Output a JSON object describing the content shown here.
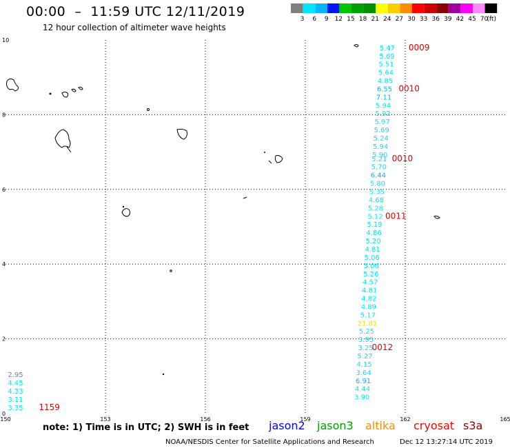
{
  "header": {
    "title": "00:00  –  11:59 UTC 12/11/2019",
    "subtitle": "12 hour collection of altimeter wave heights"
  },
  "legend": {
    "unit": "(ft)",
    "bins": [
      {
        "label": "3",
        "color": "#808080"
      },
      {
        "label": "6",
        "color": "#00e5ff"
      },
      {
        "label": "9",
        "color": "#00b4ff"
      },
      {
        "label": "12",
        "color": "#0014ff"
      },
      {
        "label": "15",
        "color": "#00c800"
      },
      {
        "label": "18",
        "color": "#00a000"
      },
      {
        "label": "21",
        "color": "#009000"
      },
      {
        "label": "24",
        "color": "#ffff00"
      },
      {
        "label": "27",
        "color": "#ffcc00"
      },
      {
        "label": "30",
        "color": "#ff8c00"
      },
      {
        "label": "33",
        "color": "#ff0000"
      },
      {
        "label": "36",
        "color": "#c80000"
      },
      {
        "label": "39",
        "color": "#8b0000"
      },
      {
        "label": "42",
        "color": "#a000a0"
      },
      {
        "label": "45",
        "color": "#ff00ff"
      },
      {
        "label": "70",
        "color": "#ff88ff"
      },
      {
        "label": "",
        "color": "#000000"
      }
    ]
  },
  "chart_data": {
    "type": "scatter",
    "xlim": [
      150,
      165
    ],
    "ylim": [
      0,
      10
    ],
    "xticks": [
      "150",
      "153",
      "156",
      "159",
      "162",
      "165"
    ],
    "yticks": [
      "0",
      "2",
      "4",
      "6",
      "8",
      "10"
    ],
    "grid": true,
    "points": [
      {
        "lon": 161.46,
        "lat": 9.8,
        "v": "5.47",
        "c": "#00e5ff"
      },
      {
        "lon": 161.45,
        "lat": 9.58,
        "v": "5.69",
        "c": "#00e5ff"
      },
      {
        "lon": 161.43,
        "lat": 9.36,
        "v": "5.51",
        "c": "#00e5ff"
      },
      {
        "lon": 161.42,
        "lat": 9.14,
        "v": "5.64",
        "c": "#00e5ff"
      },
      {
        "lon": 161.4,
        "lat": 8.92,
        "v": "4.85",
        "c": "#00e5ff"
      },
      {
        "lon": 161.38,
        "lat": 8.7,
        "v": "6.55",
        "c": "#00b4ff"
      },
      {
        "lon": 161.36,
        "lat": 8.48,
        "v": "7.11",
        "c": "#00b4ff"
      },
      {
        "lon": 161.34,
        "lat": 8.26,
        "v": "5.94",
        "c": "#00e5ff"
      },
      {
        "lon": 161.33,
        "lat": 8.04,
        "v": "5.92",
        "c": "#00e5ff"
      },
      {
        "lon": 161.31,
        "lat": 7.82,
        "v": "5.97",
        "c": "#00e5ff"
      },
      {
        "lon": 161.29,
        "lat": 7.6,
        "v": "5.69",
        "c": "#00e5ff"
      },
      {
        "lon": 161.27,
        "lat": 7.38,
        "v": "5.24",
        "c": "#00e5ff"
      },
      {
        "lon": 161.26,
        "lat": 7.16,
        "v": "5.94",
        "c": "#00e5ff"
      },
      {
        "lon": 161.24,
        "lat": 6.94,
        "v": "5.90",
        "c": "#00e5ff"
      },
      {
        "lon": 161.22,
        "lat": 6.83,
        "v": "5.21",
        "c": "#00e5ff"
      },
      {
        "lon": 161.21,
        "lat": 6.61,
        "v": "5.70",
        "c": "#00e5ff"
      },
      {
        "lon": 161.19,
        "lat": 6.39,
        "v": "6.44",
        "c": "#00b4ff"
      },
      {
        "lon": 161.17,
        "lat": 6.17,
        "v": "5.80",
        "c": "#00e5ff"
      },
      {
        "lon": 161.15,
        "lat": 5.95,
        "v": "5.35",
        "c": "#00e5ff"
      },
      {
        "lon": 161.13,
        "lat": 5.73,
        "v": "4.68",
        "c": "#00e5ff"
      },
      {
        "lon": 161.11,
        "lat": 5.51,
        "v": "5.28",
        "c": "#00e5ff"
      },
      {
        "lon": 161.1,
        "lat": 5.29,
        "v": "5.12",
        "c": "#00e5ff"
      },
      {
        "lon": 161.08,
        "lat": 5.07,
        "v": "5.19",
        "c": "#00e5ff"
      },
      {
        "lon": 161.06,
        "lat": 4.85,
        "v": "4.86",
        "c": "#00e5ff"
      },
      {
        "lon": 161.04,
        "lat": 4.63,
        "v": "5.20",
        "c": "#00e5ff"
      },
      {
        "lon": 161.02,
        "lat": 4.41,
        "v": "4.81",
        "c": "#00e5ff"
      },
      {
        "lon": 161.0,
        "lat": 4.19,
        "v": "5.06",
        "c": "#00e5ff"
      },
      {
        "lon": 160.98,
        "lat": 3.97,
        "v": "5.06",
        "c": "#00e5ff"
      },
      {
        "lon": 160.97,
        "lat": 3.75,
        "v": "5.26",
        "c": "#00e5ff"
      },
      {
        "lon": 160.95,
        "lat": 3.53,
        "v": "4.57",
        "c": "#00e5ff"
      },
      {
        "lon": 160.93,
        "lat": 3.31,
        "v": "4.81",
        "c": "#00e5ff"
      },
      {
        "lon": 160.91,
        "lat": 3.09,
        "v": "4.82",
        "c": "#00e5ff"
      },
      {
        "lon": 160.9,
        "lat": 2.87,
        "v": "4.89",
        "c": "#00e5ff"
      },
      {
        "lon": 160.88,
        "lat": 2.65,
        "v": "5.17",
        "c": "#00e5ff"
      },
      {
        "lon": 160.86,
        "lat": 2.43,
        "v": "21.81",
        "c": "#e6e600"
      },
      {
        "lon": 160.84,
        "lat": 2.21,
        "v": "5.25",
        "c": "#00e5ff"
      },
      {
        "lon": 160.82,
        "lat": 1.99,
        "v": "3.95",
        "c": "#00e5ff"
      },
      {
        "lon": 160.81,
        "lat": 1.77,
        "v": "3.25",
        "c": "#00e5ff"
      },
      {
        "lon": 160.79,
        "lat": 1.55,
        "v": "5.27",
        "c": "#00e5ff"
      },
      {
        "lon": 160.77,
        "lat": 1.33,
        "v": "4.15",
        "c": "#00e5ff"
      },
      {
        "lon": 160.75,
        "lat": 1.11,
        "v": "3.64",
        "c": "#00e5ff"
      },
      {
        "lon": 160.74,
        "lat": 0.89,
        "v": "6.91",
        "c": "#00b4ff"
      },
      {
        "lon": 160.72,
        "lat": 0.67,
        "v": "4.44",
        "c": "#00e5ff"
      },
      {
        "lon": 160.7,
        "lat": 0.45,
        "v": "3.90",
        "c": "#00e5ff"
      },
      {
        "lon": 150.3,
        "lat": 1.05,
        "v": "2.95",
        "c": "#808080"
      },
      {
        "lon": 150.3,
        "lat": 0.83,
        "v": "4.45",
        "c": "#00e5ff"
      },
      {
        "lon": 150.3,
        "lat": 0.61,
        "v": "4.33",
        "c": "#00e5ff"
      },
      {
        "lon": 150.3,
        "lat": 0.39,
        "v": "3.11",
        "c": "#00e5ff"
      },
      {
        "lon": 150.3,
        "lat": 0.17,
        "v": "3.35",
        "c": "#00e5ff"
      }
    ],
    "time_labels": [
      {
        "lon": 162.1,
        "lat": 9.8,
        "t": "0009"
      },
      {
        "lon": 161.8,
        "lat": 8.7,
        "t": "0010"
      },
      {
        "lon": 161.6,
        "lat": 6.83,
        "t": "0010"
      },
      {
        "lon": 161.4,
        "lat": 5.29,
        "t": "0011"
      },
      {
        "lon": 161.0,
        "lat": 1.77,
        "t": "0012"
      },
      {
        "lon": 151.0,
        "lat": 0.17,
        "t": "1159"
      }
    ]
  },
  "footer": {
    "note": "note:  1) Time is in UTC; 2) SWH is in feet",
    "satellites": [
      {
        "name": "jason2",
        "color": "#0000ff"
      },
      {
        "name": "jason3",
        "color": "#00a000"
      },
      {
        "name": "altika",
        "color": "#ff8c00"
      },
      {
        "name": "cryosat",
        "color": "#ff0000"
      },
      {
        "name": "s3a",
        "color": "#8b0000"
      }
    ],
    "credit": "NOAA/NESDIS Center for Satellite Applications and Research",
    "timestamp": "Dec 12 13:27:14 UTC 2019"
  }
}
